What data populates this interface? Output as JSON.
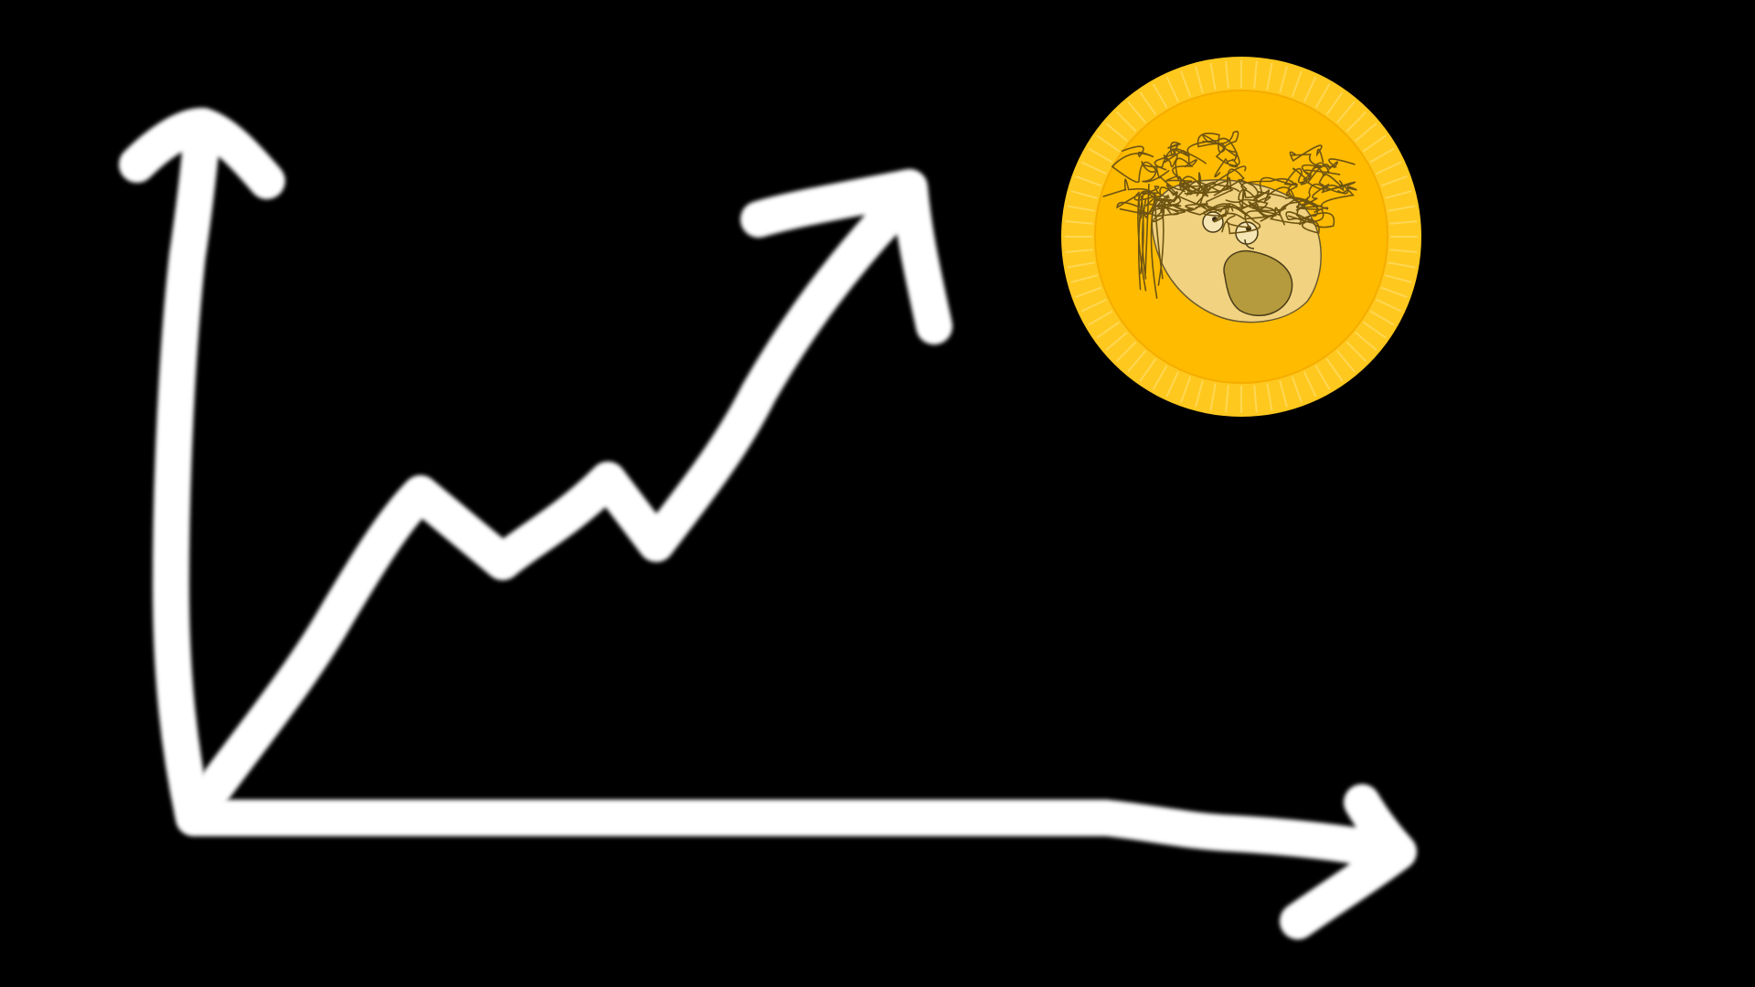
{
  "scene": {
    "background_color": "#000000",
    "stroke_color": "#ffffff",
    "coin": {
      "outer_color": "#ffc81e",
      "inner_color": "#ffbb00",
      "rim_tick_color": "#ffd95a",
      "face_color": "#f0d280",
      "face_outline_color": "#6b5a2e",
      "hair_color": "#6e5412",
      "mouth_color": "#b59b3e"
    },
    "icons": [
      "hand-drawn-y-axis-arrow",
      "hand-drawn-x-axis-arrow",
      "rising-trend-arrow",
      "cartoon-face-coin-icon"
    ]
  }
}
